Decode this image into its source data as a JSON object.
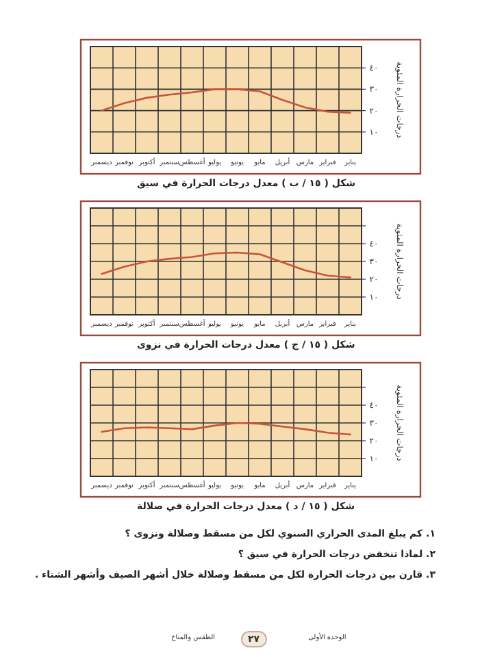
{
  "chart_data": [
    {
      "type": "line",
      "title": "شكل ( ١٥ / ب ) معدل درجات الحرارة في سيق",
      "ylabel": "درجات الحرارة المئوية",
      "categories": [
        "ديسمبر",
        "نوفمبر",
        "أكتوبر",
        "سبتمبر",
        "أغسطس",
        "يوليو",
        "يونيو",
        "مايو",
        "أبريل",
        "مارس",
        "فبراير",
        "يناير"
      ],
      "values": [
        20,
        23.5,
        26,
        27.5,
        28.5,
        30,
        30,
        29,
        25,
        21.5,
        19.5,
        19
      ],
      "color": "#c8553a",
      "ylim": [
        0,
        50
      ],
      "yticks": [
        {
          "value": 10,
          "label": "١٠"
        },
        {
          "value": 20,
          "label": "٢٠"
        },
        {
          "value": 30,
          "label": "٣٠"
        },
        {
          "value": 40,
          "label": "٤٠"
        }
      ],
      "grid": true
    },
    {
      "type": "line",
      "title": "شكل ( ١٥ / ج ) معدل درجات الحرارة في نزوى",
      "ylabel": "درجات الحرارة المئوية",
      "categories": [
        "ديسمبر",
        "نوفمبر",
        "أكتوبر",
        "سبتمبر",
        "أغسطس",
        "يوليو",
        "يونيو",
        "مايو",
        "أبريل",
        "مارس",
        "فبراير",
        "يناير"
      ],
      "values": [
        23,
        27,
        30,
        31.5,
        32.5,
        34.5,
        35,
        34,
        29.5,
        25,
        22,
        21
      ],
      "color": "#c8553a",
      "ylim": [
        0,
        60
      ],
      "yticks": [
        {
          "value": 10,
          "label": "١٠"
        },
        {
          "value": 20,
          "label": "٢٠"
        },
        {
          "value": 30,
          "label": "٣٠"
        },
        {
          "value": 40,
          "label": "٤٠"
        },
        {
          "value": 50,
          "label": null
        }
      ],
      "grid": true
    },
    {
      "type": "line",
      "title": "شكل ( ١٥ / د ) معدل درجات الحرارة في صلالة",
      "ylabel": "درجات الحرارة المئوية",
      "categories": [
        "ديسمبر",
        "نوفمبر",
        "أكتوبر",
        "سبتمبر",
        "أغسطس",
        "يوليو",
        "يونيو",
        "مايو",
        "أبريل",
        "مارس",
        "فبراير",
        "يناير"
      ],
      "values": [
        25,
        27,
        27.5,
        27,
        26.5,
        28.5,
        30,
        29.5,
        28,
        26.5,
        24.5,
        23.5
      ],
      "color": "#c8553a",
      "ylim": [
        0,
        60
      ],
      "yticks": [
        {
          "value": 10,
          "label": "١٠"
        },
        {
          "value": 20,
          "label": "٢٠"
        },
        {
          "value": 30,
          "label": "٣٠"
        },
        {
          "value": 40,
          "label": "٤٠"
        },
        {
          "value": 50,
          "label": null
        }
      ],
      "grid": true
    },
    {
      "type": "other",
      "annotations": [
        "١. كم يبلغ المدى الحراري السنوي لكل من مسقط وصلالة ونزوى ؟",
        "٢. لماذا تنخفض درجات الحرارة في سيق ؟",
        "٣. قارن بين درجات الحرارة لكل من مسقط وصلالة خلال أشهر الصيف وأشهر الشتاء .",
        "الوحدة الأولى",
        "٢٧",
        "الطقس والمناخ"
      ]
    }
  ]
}
